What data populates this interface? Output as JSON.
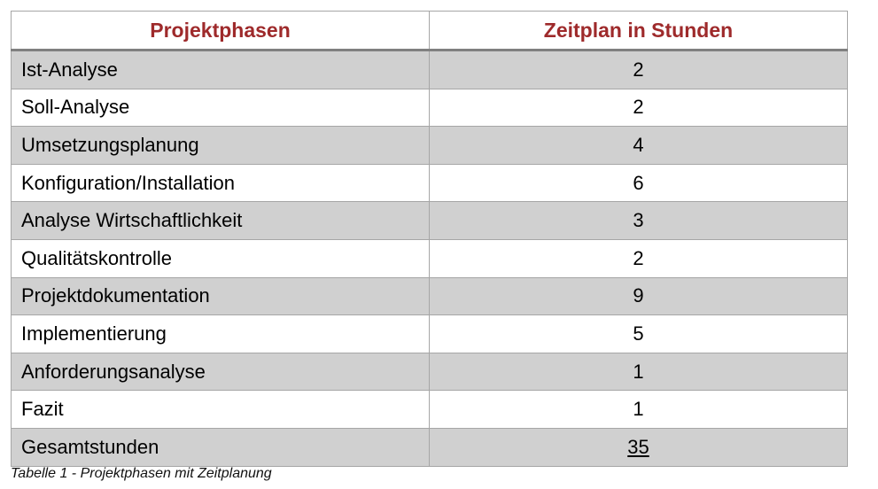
{
  "table": {
    "headers": [
      "Projektphasen",
      "Zeitplan in Stunden"
    ],
    "rows": [
      {
        "phase": "Ist-Analyse",
        "hours": "2"
      },
      {
        "phase": "Soll-Analyse",
        "hours": "2"
      },
      {
        "phase": "Umsetzungsplanung",
        "hours": "4"
      },
      {
        "phase": "Konfiguration/Installation",
        "hours": "6"
      },
      {
        "phase": "Analyse Wirtschaftlichkeit",
        "hours": "3"
      },
      {
        "phase": "Qualitätskontrolle",
        "hours": "2"
      },
      {
        "phase": "Projektdokumentation",
        "hours": "9"
      },
      {
        "phase": "Implementierung",
        "hours": "5"
      },
      {
        "phase": "Anforderungsanalyse",
        "hours": "1"
      },
      {
        "phase": "Fazit",
        "hours": "1"
      }
    ],
    "total": {
      "label": "Gesamtstunden",
      "hours": "35"
    }
  },
  "caption": "Tabelle 1 - Projektphasen mit Zeitplanung",
  "colors": {
    "header_text": "#9e2a2b",
    "shaded_row": "#d0d0d0",
    "border": "#a6a6a6"
  }
}
